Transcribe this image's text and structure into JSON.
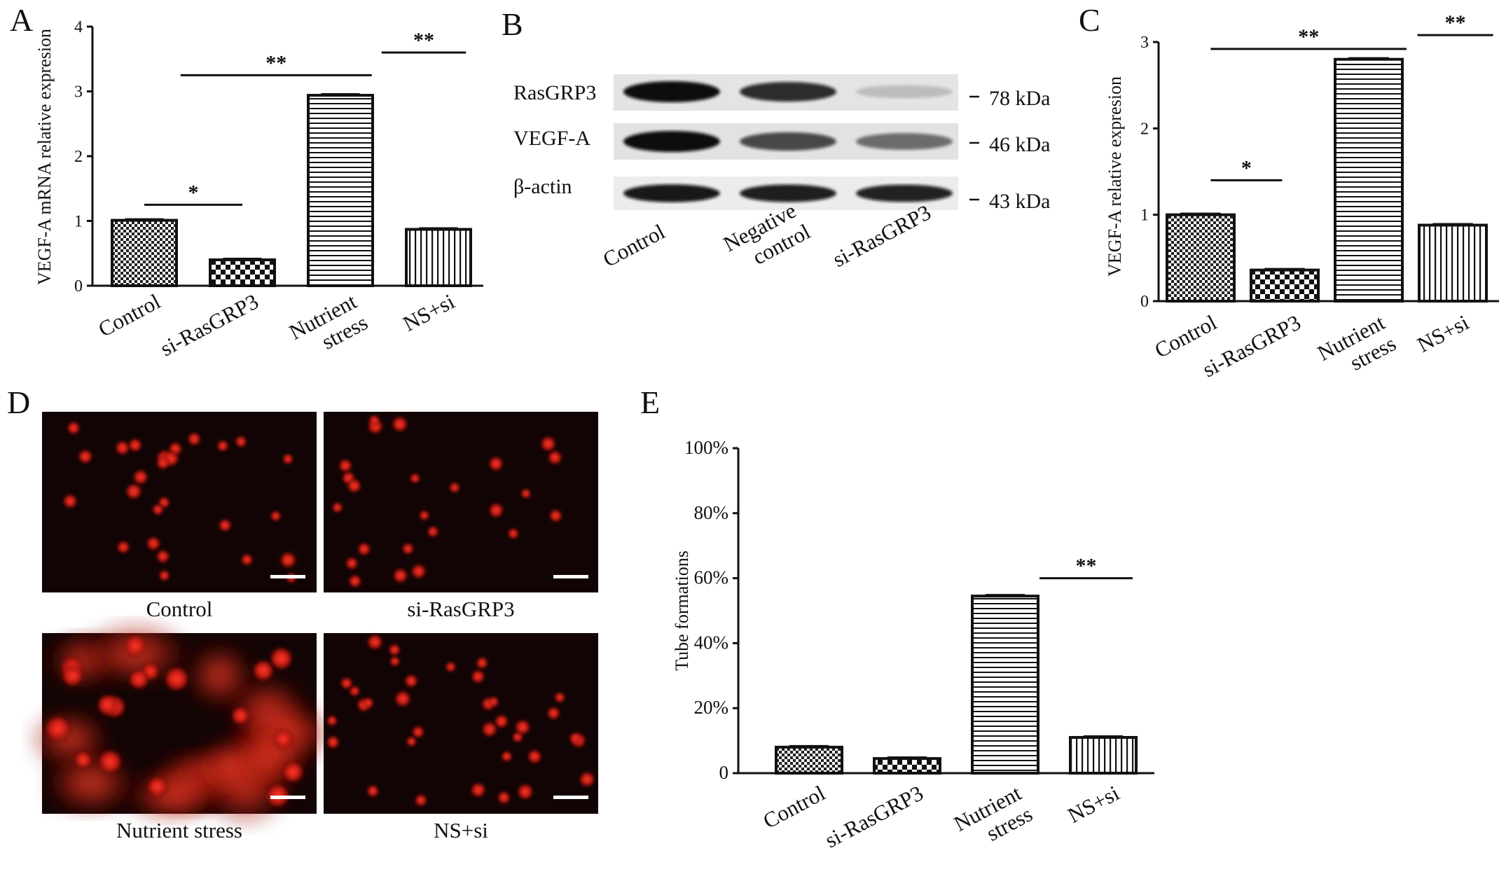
{
  "panels": {
    "A": "A",
    "B": "B",
    "C": "C",
    "D": "D",
    "E": "E"
  },
  "chart_data": [
    {
      "id": "A",
      "type": "bar",
      "ylabel": "VEGF-A mRNA relative  expresion",
      "ylim": [
        0,
        4
      ],
      "yticks": [
        "0",
        "1",
        "2",
        "3",
        "4"
      ],
      "categories": [
        "Control",
        "si-RasGRP3",
        "Nutrient\nstress",
        "NS+si"
      ],
      "values": [
        1.01,
        0.4,
        2.94,
        0.87
      ],
      "patterns": [
        "checker",
        "checker-coarse",
        "hlines",
        "vlines"
      ],
      "significance": [
        {
          "label": "*",
          "from": 0,
          "to": 1,
          "y": 1.25
        },
        {
          "label": "**",
          "from": 0.37,
          "to": 2.32,
          "y": 3.25
        },
        {
          "label": "**",
          "from": 2.42,
          "to": 3.28,
          "y": 3.6
        }
      ]
    },
    {
      "id": "C",
      "type": "bar",
      "ylabel": "VEGF-A relative  expresion",
      "ylim": [
        0,
        3
      ],
      "yticks": [
        "0",
        "1",
        "2",
        "3"
      ],
      "categories": [
        "Control",
        "si-RasGRP3",
        "Nutrient\nstress",
        "NS+si"
      ],
      "values": [
        1.0,
        0.36,
        2.8,
        0.88
      ],
      "patterns": [
        "checker",
        "checker-coarse",
        "hlines",
        "vlines"
      ],
      "significance": [
        {
          "label": "*",
          "from": 0.12,
          "to": 0.97,
          "y": 1.4
        },
        {
          "label": "**",
          "from": 0.12,
          "to": 2.45,
          "y": 2.92
        },
        {
          "label": "**",
          "from": 2.58,
          "to": 3.48,
          "y": 3.08
        }
      ]
    },
    {
      "id": "E",
      "type": "bar",
      "ylabel": "Tube formations",
      "ylim": [
        0,
        100
      ],
      "yticks": [
        "0",
        "20%",
        "40%",
        "60%",
        "80%",
        "100%"
      ],
      "categories": [
        "Control",
        "si-RasGRP3",
        "Nutrient\nstress",
        "NS+si"
      ],
      "values": [
        8,
        4.5,
        54.5,
        11
      ],
      "patterns": [
        "checker",
        "checker-coarse",
        "hlines",
        "vlines"
      ],
      "significance": [
        {
          "label": "**",
          "from": 2.35,
          "to": 3.3,
          "y": 60
        }
      ]
    }
  ],
  "western_blot": {
    "rows": [
      {
        "label": "RasGRP3",
        "size": "78 kDa",
        "intensities": [
          1.0,
          0.85,
          0.18
        ]
      },
      {
        "label": "VEGF-A",
        "size": "46 kDa",
        "intensities": [
          1.0,
          0.72,
          0.55
        ]
      },
      {
        "label": "β-actin",
        "size": "43 kDa",
        "intensities": [
          0.95,
          0.92,
          0.9
        ]
      }
    ],
    "lanes": [
      "Control",
      "Negative\ncontrol",
      "si-RasGRP3"
    ]
  },
  "microscopy": {
    "captions": [
      "Control",
      "si-RasGRP3",
      "Nutrient stress",
      "NS+si"
    ],
    "background": "#120404",
    "signal_color": "#e0241c"
  },
  "colors": {
    "bar_stroke": "#111111",
    "background": "#ffffff"
  }
}
